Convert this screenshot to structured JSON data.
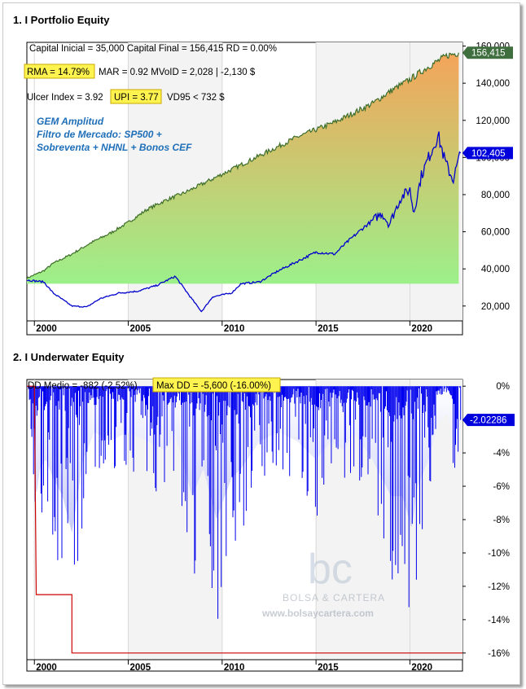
{
  "panels": {
    "top": {
      "title": "1. I Portfolio Equity"
    },
    "bottom": {
      "title": "2. I Underwater Equity"
    }
  },
  "stats": {
    "line1": "Capital Inicial = 35,000  Capital Final = 156,415   RD = 0.00%",
    "rma": "RMA = 14.79%",
    "line2_rest": "MAR = 0.92  MVoID = 2,028 | -2,130 $",
    "ulcer": "Ulcer Index = 3.92",
    "upi": "UPI = 3.77",
    "vd95": "VD95 < 732 $",
    "strategy_line1": "GEM Amplitud",
    "strategy_line2": "Filtro de Mercado: SP500 +",
    "strategy_line3": "Sobreventa + NHNL + Bonos CEF",
    "dd_medio": "DD Medio = -882 (-2.52%)",
    "max_dd": "Max DD = -5,600 (-16.00%)"
  },
  "watermark": {
    "logo": "bc",
    "name": "BOLSA & CARTERA",
    "url": "www.bolsaycartera.com"
  },
  "colors": {
    "equity_fill_top": "#f4a45a",
    "equity_fill_bottom": "#9cf08a",
    "equity_line": "#3c6e2a",
    "benchmark_line": "#0000cc",
    "underwater_line": "#0000ee",
    "max_dd_line": "#cc0000",
    "highlight": "#fff44f",
    "last_equity_badge": "#3f6e3f",
    "last_benchmark_badge": "#0000dd",
    "last_dd_badge": "#0000dd"
  },
  "chart_data": [
    {
      "type": "area",
      "x_ticks": [
        "2000",
        "2005",
        "2010",
        "2015",
        "2020"
      ],
      "x_range": [
        1999.6,
        2022.8
      ],
      "y_ticks": [
        "20,000",
        "40,000",
        "60,000",
        "80,000",
        "100,000",
        "120,000",
        "140,000",
        "160,000"
      ],
      "y_tick_values": [
        20000,
        40000,
        60000,
        80000,
        100000,
        120000,
        140000,
        160000
      ],
      "ylim": [
        12000,
        162000
      ],
      "last_equity_label": "156,415",
      "last_equity_value": 156415,
      "last_benchmark_label": "102,405",
      "last_benchmark_value": 102405,
      "series": [
        {
          "name": "Equity",
          "x": [
            1999.6,
            2000.5,
            2001.0,
            2002.0,
            2003.0,
            2004.0,
            2005.0,
            2006.0,
            2007.0,
            2008.0,
            2009.0,
            2010.0,
            2011.0,
            2012.0,
            2013.0,
            2014.0,
            2015.0,
            2016.0,
            2017.0,
            2018.0,
            2019.0,
            2020.0,
            2021.0,
            2022.0,
            2022.6
          ],
          "values": [
            35000,
            39000,
            43000,
            48000,
            54000,
            59000,
            65000,
            72000,
            77000,
            81000,
            86000,
            91000,
            96000,
            101000,
            106000,
            111000,
            115000,
            119000,
            124000,
            129000,
            136000,
            142000,
            149000,
            155000,
            156415
          ]
        },
        {
          "name": "Benchmark",
          "x": [
            1999.6,
            2000.5,
            2001.0,
            2002.0,
            2002.8,
            2003.5,
            2004.5,
            2005.5,
            2006.5,
            2007.5,
            2008.3,
            2008.9,
            2009.5,
            2010.0,
            2010.5,
            2011.0,
            2012.0,
            2013.0,
            2014.0,
            2015.0,
            2016.0,
            2016.5,
            2017.5,
            2018.5,
            2018.9,
            2019.5,
            2020.0,
            2020.2,
            2020.6,
            2021.0,
            2021.5,
            2021.9,
            2022.3,
            2022.7
          ],
          "values": [
            34000,
            33000,
            27000,
            20000,
            19500,
            24000,
            27000,
            28000,
            31000,
            36000,
            25000,
            17000,
            25000,
            26000,
            27000,
            32000,
            33000,
            39000,
            44000,
            49000,
            48000,
            53000,
            62000,
            70000,
            64000,
            78000,
            83000,
            70000,
            90000,
            100000,
            112000,
            97000,
            88000,
            102405
          ]
        }
      ]
    },
    {
      "type": "area",
      "x_ticks": [
        "2000",
        "2005",
        "2010",
        "2015",
        "2020"
      ],
      "x_range": [
        1999.6,
        2022.8
      ],
      "y_ticks": [
        "0%",
        "-2%",
        "-4%",
        "-6%",
        "-8%",
        "-10%",
        "-12%",
        "-14%",
        "-16%"
      ],
      "y_tick_values": [
        0,
        -2,
        -4,
        -6,
        -8,
        -10,
        -12,
        -14,
        -16
      ],
      "ylim": [
        -16.4,
        0.4
      ],
      "last_dd_label": "-2.02286",
      "last_dd_value": -2.02286,
      "series": [
        {
          "name": "Underwater",
          "x": [
            1999.6,
            1999.9,
            2000.1,
            2000.3,
            2000.6,
            2001.0,
            2001.5,
            2002.0,
            2002.3,
            2002.6,
            2003.2,
            2004.0,
            2005.0,
            2006.0,
            2007.0,
            2007.5,
            2008.0,
            2008.4,
            2009.0,
            2009.7,
            2010.5,
            2011.0,
            2012.0,
            2013.0,
            2014.0,
            2015.0,
            2015.8,
            2016.5,
            2017.0,
            2018.0,
            2018.5,
            2019.0,
            2019.6,
            2020.1,
            2020.4,
            2021.0,
            2021.5,
            2022.0,
            2022.4,
            2022.7
          ],
          "values": [
            0,
            -4,
            -12,
            -9,
            -8,
            -10,
            -12,
            -16,
            -12,
            -8,
            -5,
            -6,
            -5,
            -6,
            -7,
            -5,
            -9,
            -12,
            -9,
            -14.5,
            -10,
            -9,
            -6,
            -5,
            -6,
            -8,
            -6,
            -7,
            -5,
            -8,
            -10,
            -12,
            -12,
            -15.5,
            -11,
            -8,
            -4,
            -3,
            -7,
            -2.02
          ]
        },
        {
          "name": "Max DD",
          "x": [
            1999.6,
            2000.0,
            2000.1,
            2002.0,
            2002.0,
            2022.8
          ],
          "values": [
            0,
            0,
            -12.5,
            -12.5,
            -16,
            -16
          ]
        }
      ]
    }
  ]
}
